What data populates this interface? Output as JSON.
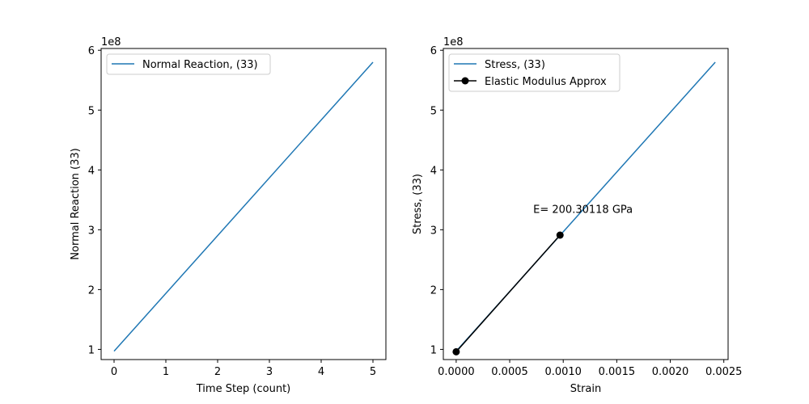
{
  "figure": {
    "background": "#ffffff"
  },
  "chart_data": [
    {
      "type": "line",
      "title": "",
      "xlabel": "Time Step (count)",
      "ylabel": "Normal Reaction (33)",
      "offset_text": "1e8",
      "xlim": [
        -0.25,
        5.25
      ],
      "ylim": [
        83000000,
        603000000
      ],
      "xticks": [
        0,
        1,
        2,
        3,
        4,
        5
      ],
      "xtick_labels": [
        "0",
        "1",
        "2",
        "3",
        "4",
        "5"
      ],
      "yticks": [
        100000000,
        200000000,
        300000000,
        400000000,
        500000000,
        600000000
      ],
      "ytick_labels": [
        "1",
        "2",
        "3",
        "4",
        "5",
        "6"
      ],
      "grid": false,
      "legend_position": "upper-left",
      "series": [
        {
          "name": "Normal Reaction, (33)",
          "color": "#1f77b4",
          "marker": "none",
          "x": [
            0,
            5
          ],
          "y": [
            97000000,
            580000000
          ]
        }
      ]
    },
    {
      "type": "line",
      "title": "",
      "xlabel": "Strain",
      "ylabel": "Stress, (33)",
      "offset_text": "1e8",
      "xlim": [
        -0.00012,
        0.00254
      ],
      "ylim": [
        83000000,
        603000000
      ],
      "xticks": [
        0,
        0.0005,
        0.001,
        0.0015,
        0.002,
        0.0025
      ],
      "xtick_labels": [
        "0.0000",
        "0.0005",
        "0.0010",
        "0.0015",
        "0.0020",
        "0.0025"
      ],
      "yticks": [
        100000000,
        200000000,
        300000000,
        400000000,
        500000000,
        600000000
      ],
      "ytick_labels": [
        "1",
        "2",
        "3",
        "4",
        "5",
        "6"
      ],
      "grid": false,
      "legend_position": "upper-left",
      "series": [
        {
          "name": "Stress, (33)",
          "color": "#1f77b4",
          "marker": "none",
          "x": [
            0,
            0.00242
          ],
          "y": [
            97000000,
            580000000
          ]
        },
        {
          "name": "Elastic Modulus Approx",
          "color": "#000000",
          "marker": "circle",
          "x": [
            0,
            0.00097
          ],
          "y": [
            96000000,
            291000000
          ]
        }
      ],
      "annotations": [
        {
          "text": "E= 200.30118 GPa",
          "x": 0.00072,
          "y": 335000000
        }
      ]
    }
  ]
}
